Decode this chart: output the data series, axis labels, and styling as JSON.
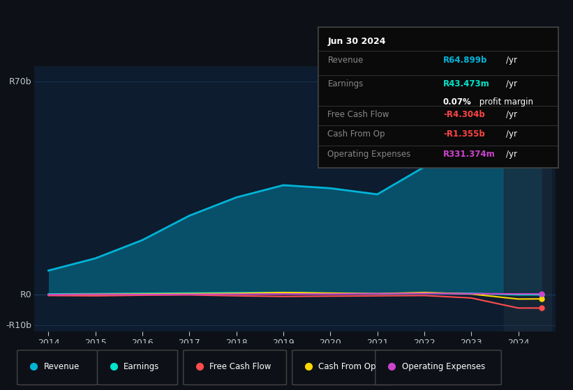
{
  "bg_color": "#0d1117",
  "plot_bg_color": "#0d1c2e",
  "years": [
    2014,
    2015,
    2016,
    2017,
    2018,
    2019,
    2020,
    2021,
    2022,
    2023,
    2024,
    2024.5
  ],
  "revenue": [
    8,
    12,
    18,
    26,
    32,
    36,
    35,
    33,
    42,
    55,
    65,
    64.899
  ],
  "earnings": [
    0.3,
    0.4,
    0.5,
    0.6,
    0.7,
    0.8,
    0.5,
    0.4,
    0.6,
    0.5,
    0.04,
    0.043
  ],
  "free_cash_flow": [
    -0.2,
    -0.3,
    -0.1,
    0.0,
    -0.3,
    -0.5,
    -0.4,
    -0.3,
    -0.2,
    -1.0,
    -4.304,
    -4.3
  ],
  "cash_from_op": [
    0.1,
    0.2,
    0.3,
    0.4,
    0.5,
    0.8,
    0.6,
    0.4,
    0.8,
    0.3,
    -1.355,
    -1.3
  ],
  "operating_expenses": [
    0.1,
    0.2,
    0.15,
    0.2,
    0.25,
    0.3,
    0.3,
    0.4,
    0.5,
    0.4,
    0.331,
    0.33
  ],
  "revenue_color": "#00b4d8",
  "earnings_color": "#00e5cc",
  "free_cash_flow_color": "#ff4d4d",
  "cash_from_op_color": "#ffd700",
  "operating_expenses_color": "#cc44cc",
  "ylabel_r70b": "R70b",
  "ylabel_r0": "R0",
  "ylabel_rm10b": "-R10b",
  "tooltip_title": "Jun 30 2024",
  "tooltip_bg": "#0a0a0a",
  "tooltip_border": "#444444",
  "grid_color": "#1e3a5f",
  "text_color": "#a0aab4",
  "axis_label_color": "#c0c8d0",
  "x_ticks": [
    2014,
    2015,
    2016,
    2017,
    2018,
    2019,
    2020,
    2021,
    2022,
    2023,
    2024
  ],
  "ylim_min": -12,
  "ylim_max": 75,
  "highlight_x": 2024.0,
  "sep_color": "#333333",
  "label_color": "#888888"
}
